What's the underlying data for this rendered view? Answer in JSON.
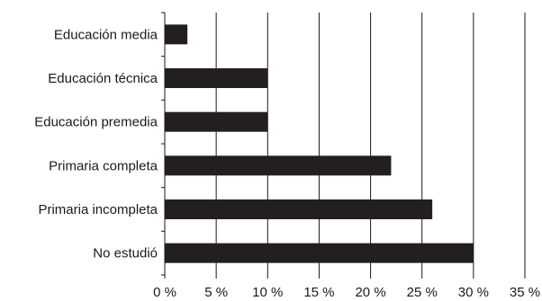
{
  "chart_data": {
    "type": "bar",
    "orientation": "horizontal",
    "categories": [
      "Educación media",
      "Educación técnica",
      "Educación premedia",
      "Primaria completa",
      "Primaria incompleta",
      "No estudió"
    ],
    "values": [
      2.2,
      10,
      10,
      22,
      26,
      30
    ],
    "xlim": [
      0,
      35
    ],
    "xticks": [
      0,
      5,
      10,
      15,
      20,
      25,
      30,
      35
    ],
    "xtick_labels": [
      "0 %",
      "5 %",
      "10 %",
      "15 %",
      "20 %",
      "25 %",
      "30 %",
      "35 %"
    ],
    "grid": "vertical",
    "colors": {
      "bar": "#231f20",
      "grid": "#1a1a1a"
    }
  }
}
